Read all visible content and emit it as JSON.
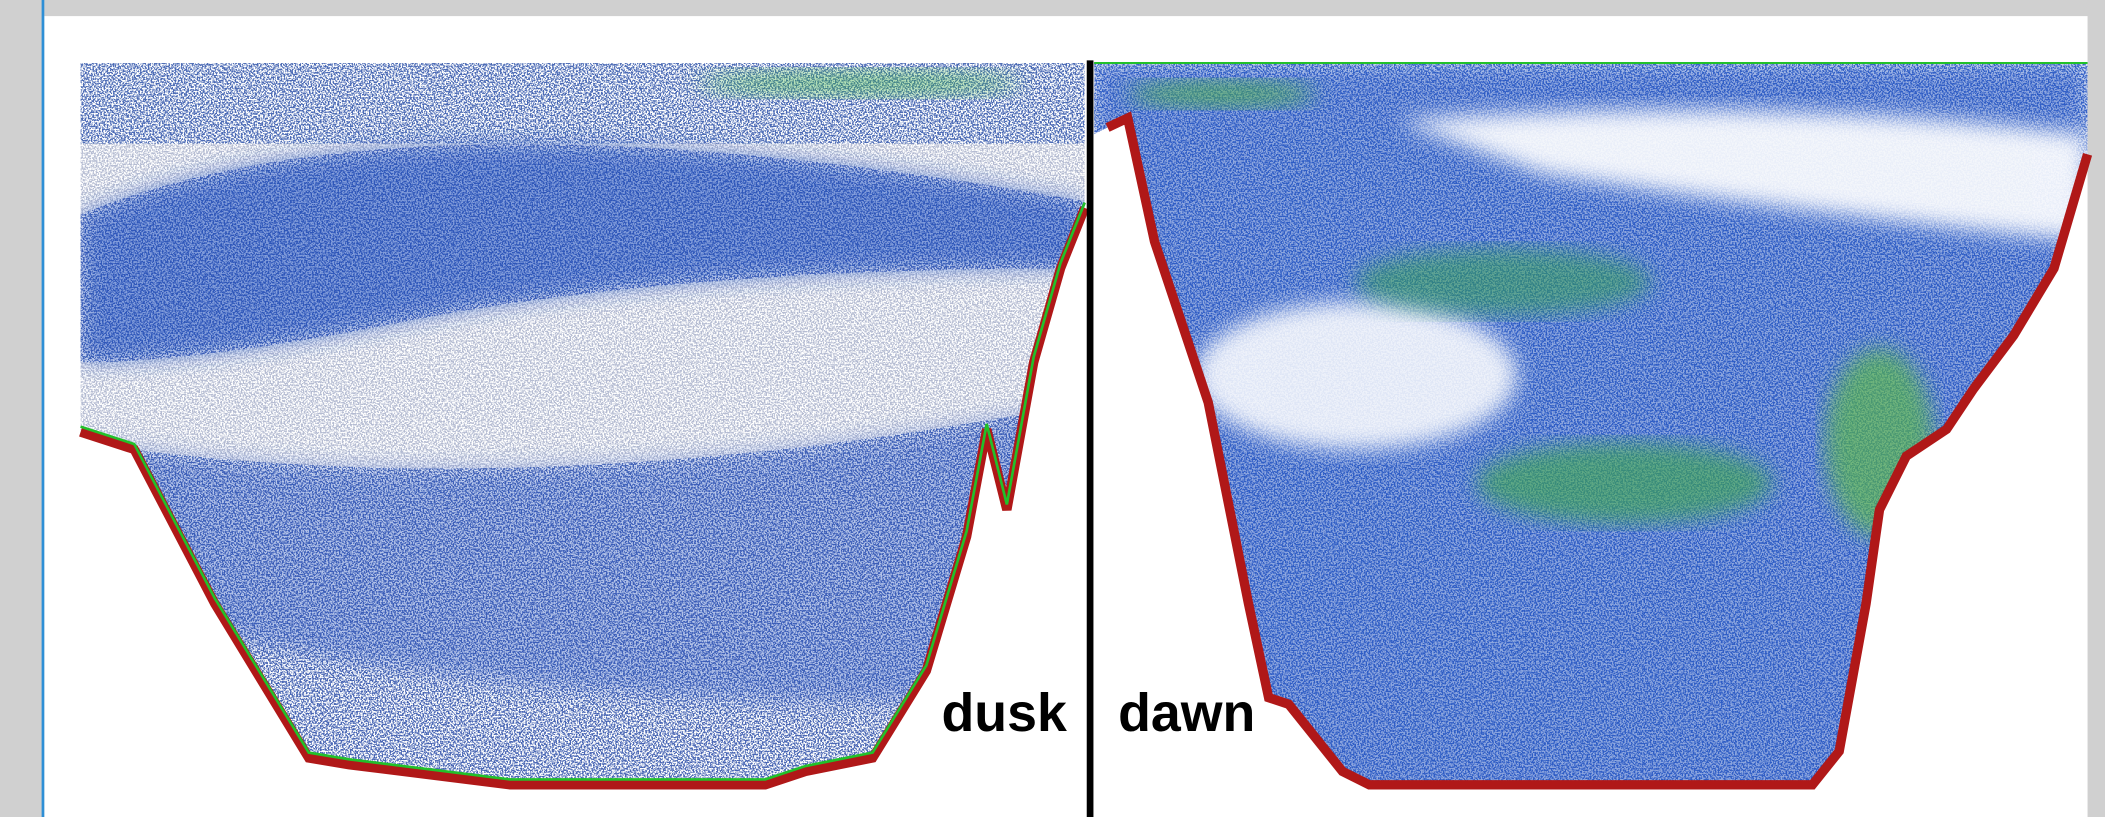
{
  "labels": {
    "left": "dusk",
    "right": "dawn"
  }
}
